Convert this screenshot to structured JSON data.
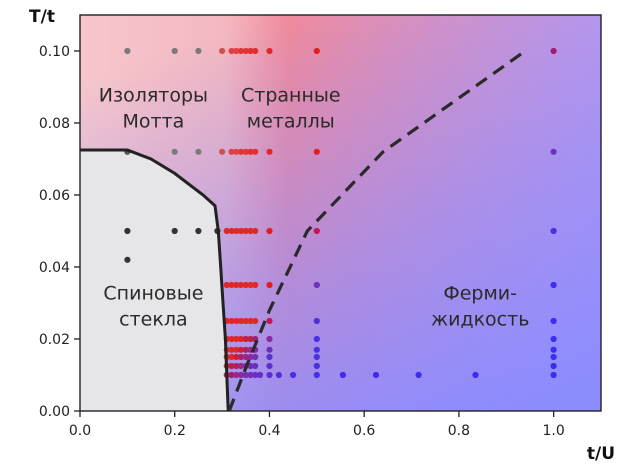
{
  "chart_data": {
    "type": "scatter",
    "xlabel": "t/U",
    "ylabel": "T/t",
    "xlim": [
      0.0,
      1.1
    ],
    "ylim": [
      0.0,
      0.11
    ],
    "x_ticks": [
      "0.0",
      "0.2",
      "0.4",
      "0.6",
      "0.8",
      "1.0"
    ],
    "y_ticks": [
      "0.00",
      "0.02",
      "0.04",
      "0.06",
      "0.08",
      "0.10"
    ],
    "x_tick_values": [
      0.0,
      0.2,
      0.4,
      0.6,
      0.8,
      1.0
    ],
    "y_tick_values": [
      0.0,
      0.02,
      0.04,
      0.06,
      0.08,
      0.1
    ],
    "grid": false,
    "background_colors": {
      "left_top": "#f6c6cc",
      "center": "#f28a9a",
      "bottom_right": "#8c8cff",
      "spin_glass": "#e6e6e8"
    },
    "regions": [
      {
        "label": "Изоляторы Мотта",
        "lines": [
          "Изоляторы",
          "Мотта"
        ],
        "x": 0.155,
        "y": 0.086
      },
      {
        "label": "Странные металлы",
        "lines": [
          "Странные",
          "металлы"
        ],
        "x": 0.445,
        "y": 0.086
      },
      {
        "label": "Спиновые стекла",
        "lines": [
          "Спиновые",
          "стекла"
        ],
        "x": 0.155,
        "y": 0.031
      },
      {
        "label": "Ферми-жидкость",
        "lines": [
          "Ферми-",
          "жидкость"
        ],
        "x": 0.845,
        "y": 0.031
      }
    ],
    "spin_glass_boundary": [
      [
        0.0,
        0.0725
      ],
      [
        0.1,
        0.0725
      ],
      [
        0.15,
        0.07
      ],
      [
        0.2,
        0.066
      ],
      [
        0.26,
        0.06
      ],
      [
        0.285,
        0.057
      ],
      [
        0.292,
        0.05
      ],
      [
        0.297,
        0.04
      ],
      [
        0.302,
        0.03
      ],
      [
        0.307,
        0.02
      ],
      [
        0.31,
        0.01
      ],
      [
        0.313,
        0.0
      ]
    ],
    "crossover_line": [
      [
        0.315,
        0.0
      ],
      [
        0.35,
        0.012
      ],
      [
        0.4,
        0.028
      ],
      [
        0.48,
        0.05
      ],
      [
        0.64,
        0.072
      ],
      [
        0.94,
        0.1
      ]
    ],
    "points": [
      {
        "x": 0.1,
        "y": 0.1,
        "color": "#7a7a7a"
      },
      {
        "x": 0.2,
        "y": 0.1,
        "color": "#7a7a7a"
      },
      {
        "x": 0.25,
        "y": 0.1,
        "color": "#7a7a7a"
      },
      {
        "x": 0.3,
        "y": 0.1,
        "color": "#d05050"
      },
      {
        "x": 0.32,
        "y": 0.1,
        "color": "#e04040"
      },
      {
        "x": 0.33,
        "y": 0.1,
        "color": "#e04040"
      },
      {
        "x": 0.34,
        "y": 0.1,
        "color": "#e03535"
      },
      {
        "x": 0.35,
        "y": 0.1,
        "color": "#e03535"
      },
      {
        "x": 0.36,
        "y": 0.1,
        "color": "#e03030"
      },
      {
        "x": 0.37,
        "y": 0.1,
        "color": "#e03030"
      },
      {
        "x": 0.4,
        "y": 0.1,
        "color": "#e02828"
      },
      {
        "x": 0.5,
        "y": 0.1,
        "color": "#e02020"
      },
      {
        "x": 1.0,
        "y": 0.1,
        "color": "#a01c70"
      },
      {
        "x": 0.1,
        "y": 0.072,
        "color": "#555555"
      },
      {
        "x": 0.2,
        "y": 0.072,
        "color": "#7a7a7a"
      },
      {
        "x": 0.25,
        "y": 0.072,
        "color": "#7a7a7a"
      },
      {
        "x": 0.3,
        "y": 0.072,
        "color": "#d05050"
      },
      {
        "x": 0.32,
        "y": 0.072,
        "color": "#e04040"
      },
      {
        "x": 0.33,
        "y": 0.072,
        "color": "#e04040"
      },
      {
        "x": 0.34,
        "y": 0.072,
        "color": "#e03535"
      },
      {
        "x": 0.35,
        "y": 0.072,
        "color": "#e03535"
      },
      {
        "x": 0.36,
        "y": 0.072,
        "color": "#e03030"
      },
      {
        "x": 0.37,
        "y": 0.072,
        "color": "#e03030"
      },
      {
        "x": 0.4,
        "y": 0.072,
        "color": "#e02828"
      },
      {
        "x": 0.5,
        "y": 0.072,
        "color": "#e02020"
      },
      {
        "x": 1.0,
        "y": 0.072,
        "color": "#7030c0"
      },
      {
        "x": 0.1,
        "y": 0.05,
        "color": "#333333"
      },
      {
        "x": 0.2,
        "y": 0.05,
        "color": "#333333"
      },
      {
        "x": 0.25,
        "y": 0.05,
        "color": "#333333"
      },
      {
        "x": 0.29,
        "y": 0.05,
        "color": "#333333"
      },
      {
        "x": 0.31,
        "y": 0.05,
        "color": "#e02828"
      },
      {
        "x": 0.32,
        "y": 0.05,
        "color": "#e02828"
      },
      {
        "x": 0.33,
        "y": 0.05,
        "color": "#e02828"
      },
      {
        "x": 0.34,
        "y": 0.05,
        "color": "#e02828"
      },
      {
        "x": 0.35,
        "y": 0.05,
        "color": "#e02828"
      },
      {
        "x": 0.36,
        "y": 0.05,
        "color": "#e02828"
      },
      {
        "x": 0.37,
        "y": 0.05,
        "color": "#e02828"
      },
      {
        "x": 0.4,
        "y": 0.05,
        "color": "#e02020"
      },
      {
        "x": 0.5,
        "y": 0.05,
        "color": "#c01850"
      },
      {
        "x": 1.0,
        "y": 0.05,
        "color": "#4a30e0"
      },
      {
        "x": 0.1,
        "y": 0.042,
        "color": "#333333"
      },
      {
        "x": 0.31,
        "y": 0.035,
        "color": "#e02828"
      },
      {
        "x": 0.32,
        "y": 0.035,
        "color": "#e02828"
      },
      {
        "x": 0.33,
        "y": 0.035,
        "color": "#e02828"
      },
      {
        "x": 0.34,
        "y": 0.035,
        "color": "#e02828"
      },
      {
        "x": 0.35,
        "y": 0.035,
        "color": "#e02828"
      },
      {
        "x": 0.36,
        "y": 0.035,
        "color": "#e02828"
      },
      {
        "x": 0.37,
        "y": 0.035,
        "color": "#e02828"
      },
      {
        "x": 0.4,
        "y": 0.035,
        "color": "#e02020"
      },
      {
        "x": 0.5,
        "y": 0.035,
        "color": "#7030c0"
      },
      {
        "x": 1.0,
        "y": 0.035,
        "color": "#3a2cf0"
      },
      {
        "x": 0.31,
        "y": 0.025,
        "color": "#e02828"
      },
      {
        "x": 0.32,
        "y": 0.025,
        "color": "#e02828"
      },
      {
        "x": 0.33,
        "y": 0.025,
        "color": "#e02828"
      },
      {
        "x": 0.34,
        "y": 0.025,
        "color": "#e02828"
      },
      {
        "x": 0.35,
        "y": 0.025,
        "color": "#e02828"
      },
      {
        "x": 0.36,
        "y": 0.025,
        "color": "#e02828"
      },
      {
        "x": 0.37,
        "y": 0.025,
        "color": "#e02828"
      },
      {
        "x": 0.4,
        "y": 0.025,
        "color": "#c01850"
      },
      {
        "x": 0.5,
        "y": 0.025,
        "color": "#5030d0"
      },
      {
        "x": 1.0,
        "y": 0.025,
        "color": "#3a2cf0"
      },
      {
        "x": 0.31,
        "y": 0.02,
        "color": "#e02828"
      },
      {
        "x": 0.32,
        "y": 0.02,
        "color": "#e02828"
      },
      {
        "x": 0.33,
        "y": 0.02,
        "color": "#e02828"
      },
      {
        "x": 0.34,
        "y": 0.02,
        "color": "#e02828"
      },
      {
        "x": 0.35,
        "y": 0.02,
        "color": "#c02040"
      },
      {
        "x": 0.36,
        "y": 0.02,
        "color": "#c02040"
      },
      {
        "x": 0.37,
        "y": 0.02,
        "color": "#a02070"
      },
      {
        "x": 0.4,
        "y": 0.02,
        "color": "#8a28a0"
      },
      {
        "x": 0.5,
        "y": 0.02,
        "color": "#4a30e0"
      },
      {
        "x": 1.0,
        "y": 0.02,
        "color": "#3a2cf0"
      },
      {
        "x": 0.31,
        "y": 0.017,
        "color": "#e02828"
      },
      {
        "x": 0.32,
        "y": 0.017,
        "color": "#e02828"
      },
      {
        "x": 0.33,
        "y": 0.017,
        "color": "#e02828"
      },
      {
        "x": 0.34,
        "y": 0.017,
        "color": "#d02030"
      },
      {
        "x": 0.35,
        "y": 0.017,
        "color": "#b02060"
      },
      {
        "x": 0.36,
        "y": 0.017,
        "color": "#9a2880"
      },
      {
        "x": 0.37,
        "y": 0.017,
        "color": "#8a28a0"
      },
      {
        "x": 0.4,
        "y": 0.017,
        "color": "#6a30c0"
      },
      {
        "x": 0.5,
        "y": 0.017,
        "color": "#4a30e0"
      },
      {
        "x": 1.0,
        "y": 0.017,
        "color": "#3a2cf0"
      },
      {
        "x": 0.31,
        "y": 0.015,
        "color": "#e02828"
      },
      {
        "x": 0.32,
        "y": 0.015,
        "color": "#e02828"
      },
      {
        "x": 0.33,
        "y": 0.015,
        "color": "#d02030"
      },
      {
        "x": 0.34,
        "y": 0.015,
        "color": "#b02060"
      },
      {
        "x": 0.35,
        "y": 0.015,
        "color": "#9a2880"
      },
      {
        "x": 0.36,
        "y": 0.015,
        "color": "#8a28a0"
      },
      {
        "x": 0.37,
        "y": 0.015,
        "color": "#7030b0"
      },
      {
        "x": 0.4,
        "y": 0.015,
        "color": "#5a30d0"
      },
      {
        "x": 0.5,
        "y": 0.015,
        "color": "#4a30e0"
      },
      {
        "x": 1.0,
        "y": 0.015,
        "color": "#3a2cf0"
      },
      {
        "x": 0.31,
        "y": 0.0125,
        "color": "#d02030"
      },
      {
        "x": 0.32,
        "y": 0.0125,
        "color": "#c02040"
      },
      {
        "x": 0.33,
        "y": 0.0125,
        "color": "#b02060"
      },
      {
        "x": 0.34,
        "y": 0.0125,
        "color": "#9a2880"
      },
      {
        "x": 0.35,
        "y": 0.0125,
        "color": "#8a28a0"
      },
      {
        "x": 0.36,
        "y": 0.0125,
        "color": "#7030b0"
      },
      {
        "x": 0.37,
        "y": 0.0125,
        "color": "#6a30c0"
      },
      {
        "x": 0.4,
        "y": 0.0125,
        "color": "#5a30d0"
      },
      {
        "x": 0.5,
        "y": 0.0125,
        "color": "#4a30e0"
      },
      {
        "x": 1.0,
        "y": 0.0125,
        "color": "#3a2cf0"
      },
      {
        "x": 0.31,
        "y": 0.01,
        "color": "#b02060"
      },
      {
        "x": 0.32,
        "y": 0.01,
        "color": "#a02070"
      },
      {
        "x": 0.33,
        "y": 0.01,
        "color": "#9a2880"
      },
      {
        "x": 0.34,
        "y": 0.01,
        "color": "#8a28a0"
      },
      {
        "x": 0.35,
        "y": 0.01,
        "color": "#7a2cb0"
      },
      {
        "x": 0.36,
        "y": 0.01,
        "color": "#7030b0"
      },
      {
        "x": 0.37,
        "y": 0.01,
        "color": "#6a30c0"
      },
      {
        "x": 0.38,
        "y": 0.01,
        "color": "#6030c8"
      },
      {
        "x": 0.4,
        "y": 0.01,
        "color": "#5a30d0"
      },
      {
        "x": 0.42,
        "y": 0.01,
        "color": "#5030d8"
      },
      {
        "x": 0.45,
        "y": 0.01,
        "color": "#4a30e0"
      },
      {
        "x": 0.5,
        "y": 0.01,
        "color": "#4430e6"
      },
      {
        "x": 0.555,
        "y": 0.01,
        "color": "#3a2cf0"
      },
      {
        "x": 0.625,
        "y": 0.01,
        "color": "#3a2cf0"
      },
      {
        "x": 0.715,
        "y": 0.01,
        "color": "#3a2cf0"
      },
      {
        "x": 0.835,
        "y": 0.01,
        "color": "#3a2cf0"
      },
      {
        "x": 1.0,
        "y": 0.01,
        "color": "#3a2cf0"
      }
    ]
  }
}
